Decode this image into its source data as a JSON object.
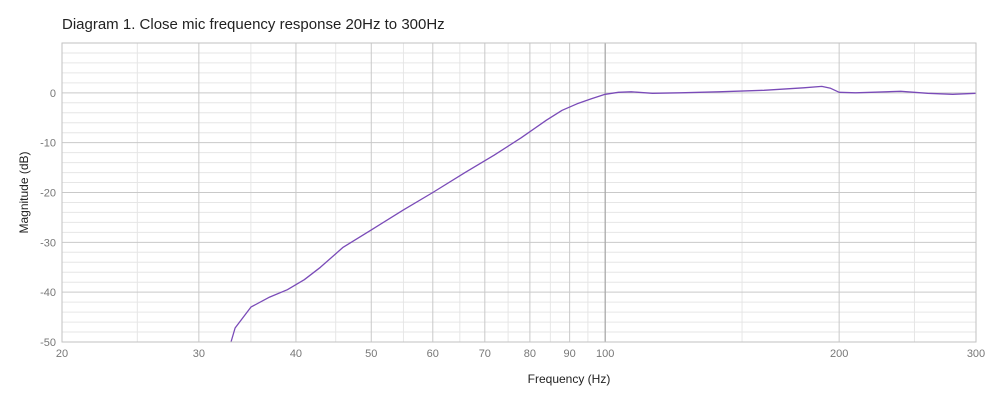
{
  "chart_data": {
    "type": "line",
    "title": "Diagram 1. Close mic frequency response 20Hz to 300Hz",
    "xlabel": "Frequency (Hz)",
    "ylabel": "Magnitude (dB)",
    "xscale": "log",
    "xlim": [
      20,
      300
    ],
    "ylim": [
      -50,
      10
    ],
    "grid": true,
    "x_ticks": [
      20,
      30,
      40,
      50,
      60,
      70,
      80,
      90,
      100,
      200,
      300
    ],
    "y_ticks": [
      0,
      -10,
      -20,
      -30,
      -40,
      -50
    ],
    "series": [
      {
        "color": "#7a4bb8",
        "points": [
          [
            33.0,
            -50
          ],
          [
            33.4,
            -47.2
          ],
          [
            35.0,
            -43.0
          ],
          [
            37.0,
            -41.0
          ],
          [
            39.0,
            -39.5
          ],
          [
            41.0,
            -37.5
          ],
          [
            43.0,
            -35.0
          ],
          [
            46.0,
            -31.0
          ],
          [
            50.0,
            -27.5
          ],
          [
            55.0,
            -23.5
          ],
          [
            60.0,
            -20.0
          ],
          [
            66.0,
            -16.0
          ],
          [
            72.0,
            -12.5
          ],
          [
            78.0,
            -9.0
          ],
          [
            84.0,
            -5.5
          ],
          [
            88.0,
            -3.5
          ],
          [
            92.0,
            -2.2
          ],
          [
            96.0,
            -1.2
          ],
          [
            100.0,
            -0.3
          ],
          [
            104.0,
            0.1
          ],
          [
            108.0,
            0.2
          ],
          [
            115.0,
            -0.1
          ],
          [
            125.0,
            0.0
          ],
          [
            140.0,
            0.2
          ],
          [
            160.0,
            0.5
          ],
          [
            180.0,
            1.0
          ],
          [
            190.0,
            1.3
          ],
          [
            195.0,
            0.9
          ],
          [
            200.0,
            0.1
          ],
          [
            210.0,
            0.0
          ],
          [
            220.0,
            0.1
          ],
          [
            240.0,
            0.3
          ],
          [
            260.0,
            -0.1
          ],
          [
            280.0,
            -0.3
          ],
          [
            300.0,
            -0.1
          ]
        ]
      }
    ]
  },
  "colors": {
    "line": "#7a4bb8",
    "grid_major": "#c9c9c9",
    "grid_minor": "#e6e6e6",
    "frame": "#c2c2c2",
    "plot_background": "#ffffff"
  }
}
